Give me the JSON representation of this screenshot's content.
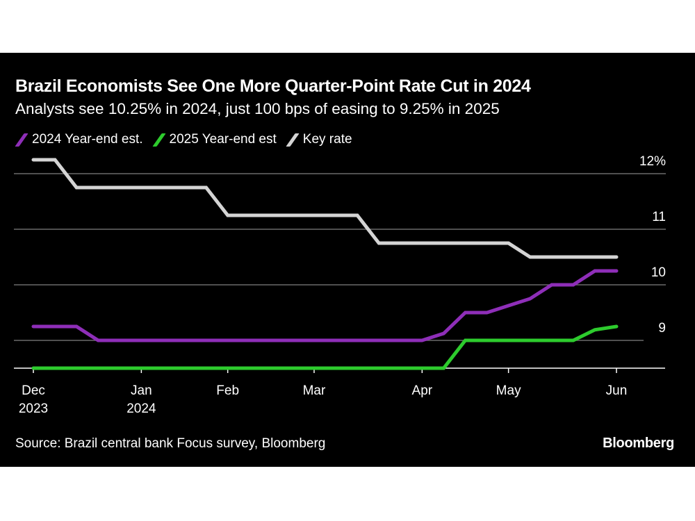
{
  "header": {
    "title": "Brazil Economists See One More Quarter-Point Rate Cut in 2024",
    "subtitle": "Analysts see 10.25% in 2024, just 100 bps of easing to 9.25% in 2025"
  },
  "footer": {
    "source": "Source: Brazil central bank Focus survey, Bloomberg",
    "brand": "Bloomberg"
  },
  "chart_data": {
    "type": "line",
    "title": "Brazil Economists See One More Quarter-Point Rate Cut in 2024",
    "subtitle": "Analysts see 10.25% in 2024, just 100 bps of easing to 9.25% in 2025",
    "xlabel": "",
    "ylabel": "",
    "x_unit": "weekly observations, Dec 2023 – Jun 2024",
    "x": [
      "2023-12-01",
      "2023-12-08",
      "2023-12-15",
      "2023-12-22",
      "2023-12-29",
      "2024-01-05",
      "2024-01-12",
      "2024-01-19",
      "2024-01-26",
      "2024-02-02",
      "2024-02-09",
      "2024-02-16",
      "2024-02-23",
      "2024-03-01",
      "2024-03-08",
      "2024-03-15",
      "2024-03-22",
      "2024-03-29",
      "2024-04-05",
      "2024-04-12",
      "2024-04-19",
      "2024-04-26",
      "2024-05-03",
      "2024-05-10",
      "2024-05-17",
      "2024-05-24",
      "2024-05-31",
      "2024-06-07"
    ],
    "x_ticks": [
      {
        "label": "Dec",
        "sublabel": "2023",
        "index": 0
      },
      {
        "label": "Jan",
        "sublabel": "2024",
        "index": 5
      },
      {
        "label": "Feb",
        "sublabel": "",
        "index": 9
      },
      {
        "label": "Mar",
        "sublabel": "",
        "index": 13
      },
      {
        "label": "Apr",
        "sublabel": "",
        "index": 18
      },
      {
        "label": "May",
        "sublabel": "",
        "index": 22
      },
      {
        "label": "Jun",
        "sublabel": "",
        "index": 27
      }
    ],
    "y_ticks": [
      {
        "value": 12,
        "label": "12%"
      },
      {
        "value": 11,
        "label": "11"
      },
      {
        "value": 10,
        "label": "10"
      },
      {
        "value": 9,
        "label": "9"
      }
    ],
    "ylim": [
      8.5,
      12.5
    ],
    "grid": true,
    "legend_position": "top-left",
    "series": [
      {
        "name": "2024 Year-end est.",
        "color": "#8E2EB8",
        "values": [
          9.25,
          9.25,
          9.25,
          9.0,
          9.0,
          9.0,
          9.0,
          9.0,
          9.0,
          9.0,
          9.0,
          9.0,
          9.0,
          9.0,
          9.0,
          9.0,
          9.0,
          9.0,
          9.0,
          9.125,
          9.5,
          9.5,
          9.625,
          9.75,
          10.0,
          10.0,
          10.25,
          10.25
        ]
      },
      {
        "name": "2025 Year-end est",
        "color": "#2DCB2D",
        "values": [
          8.5,
          8.5,
          8.5,
          8.5,
          8.5,
          8.5,
          8.5,
          8.5,
          8.5,
          8.5,
          8.5,
          8.5,
          8.5,
          8.5,
          8.5,
          8.5,
          8.5,
          8.5,
          8.5,
          8.5,
          9.0,
          9.0,
          9.0,
          9.0,
          9.0,
          9.0,
          9.19,
          9.25
        ]
      },
      {
        "name": "Key rate",
        "color": "#D4D4D4",
        "values": [
          12.25,
          12.25,
          11.75,
          11.75,
          11.75,
          11.75,
          11.75,
          11.75,
          11.75,
          11.25,
          11.25,
          11.25,
          11.25,
          11.25,
          11.25,
          11.25,
          10.75,
          10.75,
          10.75,
          10.75,
          10.75,
          10.75,
          10.75,
          10.5,
          10.5,
          10.5,
          10.5,
          10.5
        ]
      }
    ]
  }
}
